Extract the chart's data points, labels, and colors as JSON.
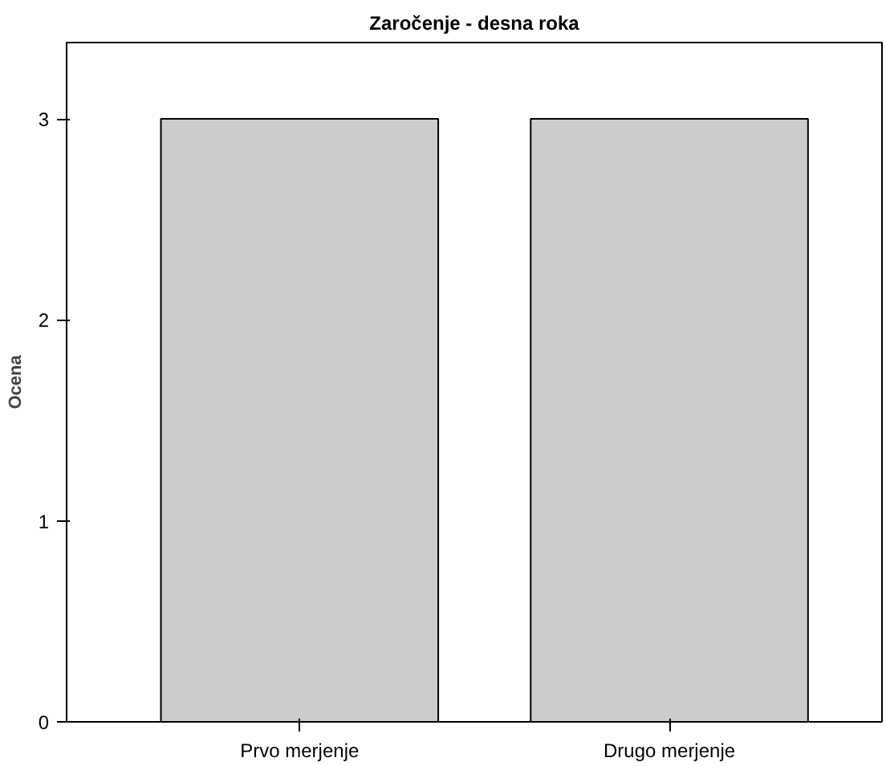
{
  "chart_data": {
    "type": "bar",
    "title": "Zaročenje - desna roka",
    "ylabel": "Ocena",
    "categories": [
      "Prvo merjenje",
      "Drugo merjenje"
    ],
    "values": [
      3,
      3
    ],
    "errors": [
      0,
      0
    ],
    "color": "#cccccc",
    "ylim": [
      0,
      3.38
    ],
    "yticks": [
      0,
      1,
      2,
      3
    ],
    "grid": false
  }
}
